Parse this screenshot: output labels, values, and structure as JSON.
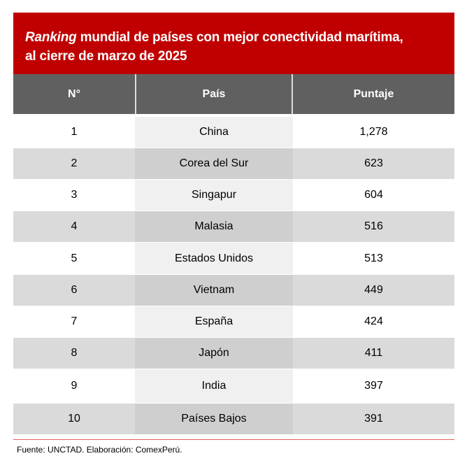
{
  "title": {
    "italic": "Ranking",
    "rest_line1": " mundial de países con mejor conectividad marítima,",
    "line2": "al cierre de marzo de 2025"
  },
  "headers": [
    "N°",
    "País",
    "Puntaje"
  ],
  "rows": [
    [
      "1",
      "China",
      "1,278"
    ],
    [
      "2",
      "Corea del Sur",
      "623"
    ],
    [
      "3",
      "Singapur",
      "604"
    ],
    [
      "4",
      "Malasia",
      "516"
    ],
    [
      "5",
      "Estados Unidos",
      "513"
    ],
    [
      "6",
      "Vietnam",
      "449"
    ],
    [
      "7",
      "España",
      "424"
    ],
    [
      "8",
      "Japón",
      "411"
    ],
    [
      "9",
      "India",
      "397"
    ],
    [
      "10",
      "Países Bajos",
      "391"
    ]
  ],
  "source": "Fuente: UNCTAD. Elaboración: ComexPerú.",
  "colors": {
    "title_bg": "#c00000",
    "header_bg": "#606060"
  }
}
